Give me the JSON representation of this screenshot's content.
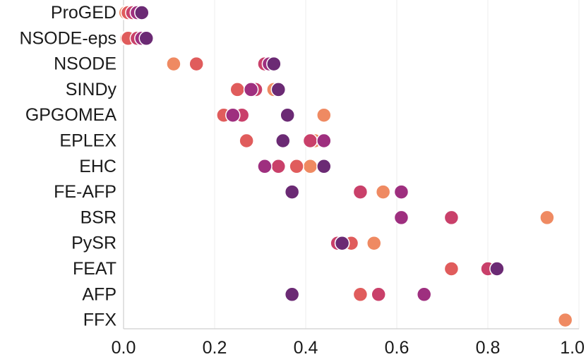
{
  "chart_data": {
    "type": "scatter",
    "title": "",
    "xlabel": "",
    "ylabel": "",
    "xlim": [
      0,
      1.0
    ],
    "grid": "x-only",
    "legend": "none",
    "x_ticks": [
      {
        "value": 0.0,
        "label": "0.0"
      },
      {
        "value": 0.2,
        "label": "0.2"
      },
      {
        "value": 0.4,
        "label": "0.4"
      },
      {
        "value": 0.6,
        "label": "0.6"
      },
      {
        "value": 0.8,
        "label": "0.8"
      },
      {
        "value": 1.0,
        "label": "1.0"
      }
    ],
    "palette": [
      "#ef8a62",
      "#e05c5c",
      "#c9406a",
      "#9e2f7f",
      "#6b2a74"
    ],
    "categories": [
      "ProGED",
      "NSODE-eps",
      "NSODE",
      "SINDy",
      "GPGOMEA",
      "EPLEX",
      "EHC",
      "FE-AFP",
      "BSR",
      "PySR",
      "FEAT",
      "AFP",
      "FFX"
    ],
    "series": [
      {
        "values": [
          0.005,
          0.007,
          0.11,
          0.33,
          0.44,
          0.42,
          0.41,
          0.57,
          0.93,
          0.55,
          null,
          0.66,
          0.97
        ]
      },
      {
        "values": [
          0.01,
          0.01,
          0.16,
          0.25,
          0.22,
          0.27,
          0.38,
          null,
          null,
          0.5,
          0.72,
          0.52,
          null
        ]
      },
      {
        "values": [
          0.02,
          0.03,
          0.31,
          0.29,
          0.26,
          0.41,
          0.34,
          0.52,
          0.72,
          0.47,
          0.8,
          0.56,
          null
        ]
      },
      {
        "values": [
          0.03,
          0.04,
          0.32,
          0.28,
          0.24,
          0.44,
          0.31,
          0.61,
          0.61,
          0.48,
          null,
          0.66,
          null
        ]
      },
      {
        "values": [
          0.04,
          0.05,
          0.33,
          0.34,
          0.36,
          0.35,
          0.44,
          0.37,
          null,
          0.48,
          0.82,
          0.37,
          null
        ]
      }
    ]
  }
}
